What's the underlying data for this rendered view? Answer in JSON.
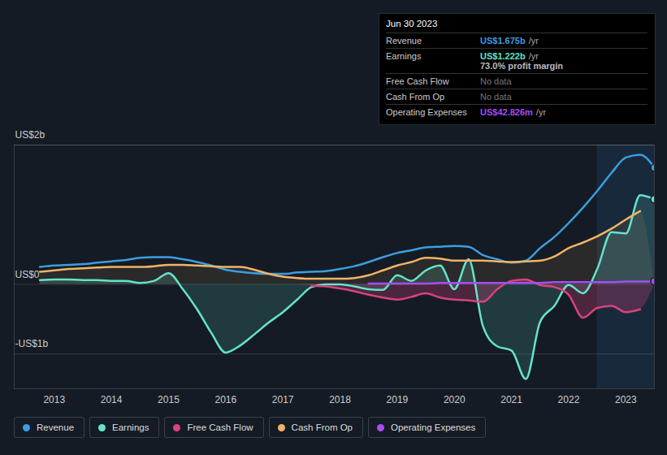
{
  "chart_data": {
    "type": "line",
    "x": [
      2012.75,
      2013.0,
      2013.25,
      2013.5,
      2013.75,
      2014.0,
      2014.25,
      2014.5,
      2014.75,
      2015.0,
      2015.25,
      2015.5,
      2015.75,
      2016.0,
      2016.25,
      2016.5,
      2016.75,
      2017.0,
      2017.25,
      2017.5,
      2017.75,
      2018.0,
      2018.25,
      2018.5,
      2018.75,
      2019.0,
      2019.25,
      2019.5,
      2019.75,
      2020.0,
      2020.25,
      2020.5,
      2020.75,
      2021.0,
      2021.25,
      2021.5,
      2021.75,
      2022.0,
      2022.25,
      2022.5,
      2022.75,
      2023.0,
      2023.25,
      2023.5
    ],
    "xlim": [
      2012.3,
      2023.5
    ],
    "xticks": [
      2013,
      2014,
      2015,
      2016,
      2017,
      2018,
      2019,
      2020,
      2021,
      2022,
      2023
    ],
    "ylim": [
      -1.5,
      2
    ],
    "yticks": [
      {
        "value": 2,
        "label": "US$2b"
      },
      {
        "value": 0,
        "label": "US$0"
      },
      {
        "value": -1,
        "label": "-US$1b"
      }
    ],
    "grid": true,
    "legend": "bottom",
    "series": [
      {
        "name": "Revenue",
        "color": "#3b9ee0",
        "values": [
          0.25,
          0.27,
          0.28,
          0.29,
          0.31,
          0.33,
          0.35,
          0.38,
          0.39,
          0.39,
          0.36,
          0.32,
          0.27,
          0.21,
          0.18,
          0.16,
          0.15,
          0.15,
          0.17,
          0.18,
          0.19,
          0.22,
          0.26,
          0.32,
          0.39,
          0.45,
          0.49,
          0.53,
          0.54,
          0.55,
          0.54,
          0.42,
          0.36,
          0.31,
          0.34,
          0.52,
          0.68,
          0.88,
          1.1,
          1.34,
          1.6,
          1.82,
          1.86,
          1.675
        ]
      },
      {
        "name": "Earnings",
        "color": "#64e3cc",
        "values": [
          0.06,
          0.07,
          0.07,
          0.06,
          0.06,
          0.05,
          0.05,
          0.02,
          0.05,
          0.16,
          -0.07,
          -0.36,
          -0.7,
          -0.98,
          -0.88,
          -0.72,
          -0.55,
          -0.4,
          -0.22,
          -0.04,
          0.0,
          0.0,
          -0.03,
          -0.07,
          -0.08,
          0.13,
          0.05,
          0.2,
          0.27,
          -0.07,
          0.36,
          -0.6,
          -0.89,
          -0.95,
          -1.36,
          -0.54,
          -0.31,
          -0.01,
          -0.13,
          0.22,
          0.75,
          0.73,
          1.28,
          1.222
        ]
      },
      {
        "name": "Free Cash Flow",
        "color": "#d8437b",
        "values": [
          null,
          null,
          null,
          null,
          null,
          null,
          null,
          null,
          null,
          null,
          null,
          null,
          null,
          null,
          null,
          null,
          null,
          null,
          null,
          -0.02,
          -0.03,
          -0.06,
          -0.1,
          -0.15,
          -0.19,
          -0.22,
          -0.18,
          -0.13,
          -0.19,
          -0.22,
          -0.23,
          -0.25,
          -0.07,
          0.05,
          0.07,
          -0.01,
          -0.04,
          -0.15,
          -0.48,
          -0.34,
          -0.31,
          -0.4,
          -0.36,
          null
        ]
      },
      {
        "name": "Cash From Op",
        "color": "#f0b466",
        "values": [
          0.18,
          0.2,
          0.22,
          0.23,
          0.24,
          0.25,
          0.25,
          0.25,
          0.26,
          0.28,
          0.28,
          0.27,
          0.26,
          0.25,
          0.25,
          0.21,
          0.15,
          0.11,
          0.09,
          0.08,
          0.08,
          0.08,
          0.09,
          0.13,
          0.2,
          0.27,
          0.32,
          0.38,
          0.37,
          0.34,
          0.34,
          0.34,
          0.33,
          0.32,
          0.33,
          0.34,
          0.4,
          0.52,
          0.6,
          0.69,
          0.8,
          0.93,
          1.05,
          null
        ]
      },
      {
        "name": "Operating Expenses",
        "color": "#a64df5",
        "values": [
          null,
          null,
          null,
          null,
          null,
          null,
          null,
          null,
          null,
          null,
          null,
          null,
          null,
          null,
          null,
          null,
          null,
          null,
          null,
          null,
          null,
          null,
          null,
          0.01,
          0.01,
          0.01,
          0.01,
          0.01,
          0.02,
          0.02,
          0.02,
          0.02,
          0.02,
          0.02,
          0.02,
          0.02,
          0.03,
          0.03,
          0.03,
          0.03,
          0.03,
          0.04,
          0.04,
          0.043
        ]
      }
    ],
    "tooltip": {
      "date": "Jun 30 2023",
      "rows": [
        {
          "label": "Revenue",
          "text": "US$1.675b",
          "suffix": "/yr",
          "color": "#3b9ee0"
        },
        {
          "label": "Earnings",
          "text": "US$1.222b",
          "suffix": "/yr",
          "color": "#64e3cc",
          "note": "73.0% profit margin"
        },
        {
          "label": "Free Cash Flow",
          "nodata": "No data"
        },
        {
          "label": "Cash From Op",
          "nodata": "No data"
        },
        {
          "label": "Operating Expenses",
          "text": "US$42.826m",
          "suffix": "/yr",
          "color": "#a64df5"
        }
      ]
    }
  }
}
